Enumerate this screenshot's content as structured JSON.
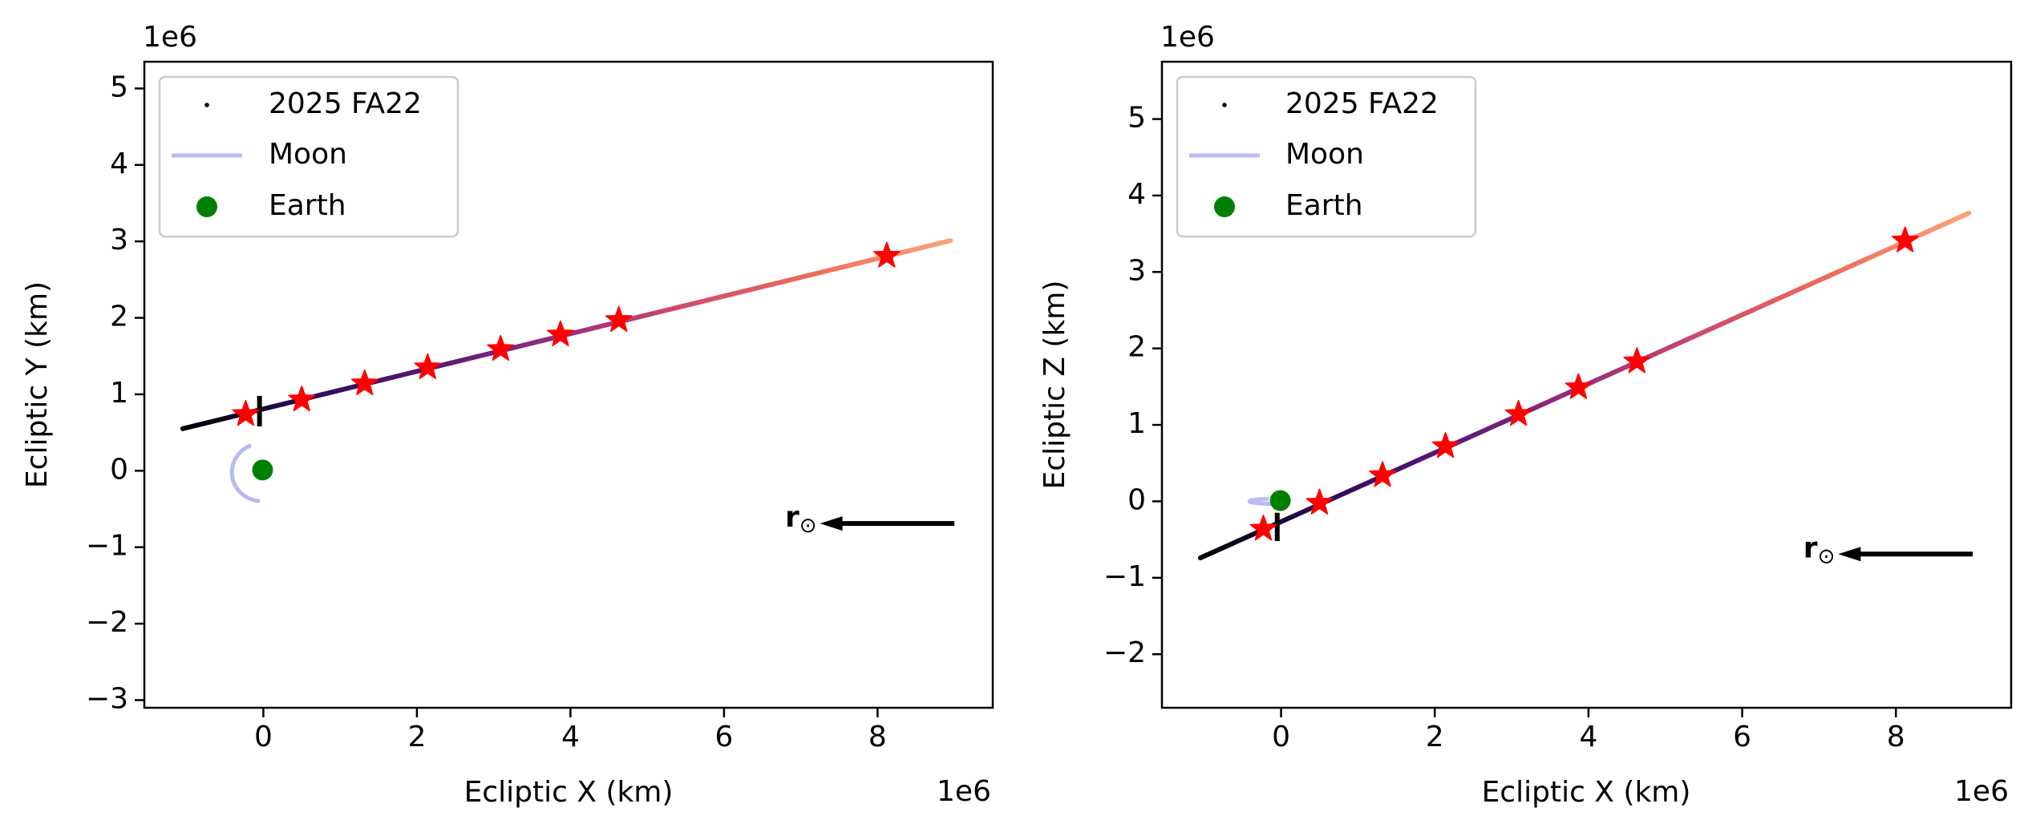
{
  "chart_data": [
    {
      "type": "line",
      "panel": "left",
      "title": "",
      "xlabel": "Ecliptic X (km)",
      "ylabel": "Ecliptic Y (km)",
      "x_multiplier": "1e6",
      "y_multiplier": "1e6",
      "xlim": [
        -1.55,
        9.5
      ],
      "ylim": [
        -3.1,
        5.35
      ],
      "xticks": [
        0,
        2,
        4,
        6,
        8
      ],
      "yticks": [
        -3,
        -2,
        -1,
        0,
        1,
        2,
        3,
        4,
        5
      ],
      "grid": false,
      "legend_position": "upper-left",
      "legend": [
        {
          "label": "2025 FA22",
          "marker": "point",
          "color": "#000000"
        },
        {
          "label": "Moon",
          "marker": "line",
          "color": "#b9b9f4"
        },
        {
          "label": "Earth",
          "marker": "circle",
          "color": "#008000"
        }
      ],
      "trajectory": {
        "name": "2025 FA22",
        "gradient": [
          "#000000",
          "#2c0c5a",
          "#5b1a7a",
          "#9a2f7e",
          "#d24c6a",
          "#f06e5a",
          "#fba47a"
        ],
        "start": [
          -1.05,
          0.55
        ],
        "end": [
          8.95,
          3.01
        ]
      },
      "tick_mark": {
        "x": -0.05,
        "y0": 0.58,
        "y1": 0.98
      },
      "stars": [
        [
          -0.23,
          0.74
        ],
        [
          0.5,
          0.93
        ],
        [
          1.32,
          1.14
        ],
        [
          2.14,
          1.35
        ],
        [
          3.09,
          1.59
        ],
        [
          3.87,
          1.78
        ],
        [
          4.63,
          1.97
        ],
        [
          8.12,
          2.81
        ]
      ],
      "earth": {
        "x": -0.01,
        "y": 0.01
      },
      "moon_arc": {
        "cx": -0.01,
        "cy": -0.02,
        "rx": 0.4,
        "ry": 0.38,
        "theta_start_deg": 112,
        "theta_end_deg": 265
      },
      "sun_direction": {
        "label": "r⊙",
        "from": [
          9.0,
          -0.69
        ],
        "to": [
          7.25,
          -0.69
        ]
      }
    },
    {
      "type": "line",
      "panel": "right",
      "title": "",
      "xlabel": "Ecliptic X (km)",
      "ylabel": "Ecliptic Z (km)",
      "x_multiplier": "1e6",
      "y_multiplier": "1e6",
      "xlim": [
        -1.55,
        9.5
      ],
      "ylim": [
        -2.7,
        5.75
      ],
      "xticks": [
        0,
        2,
        4,
        6,
        8
      ],
      "yticks": [
        -2,
        -1,
        0,
        1,
        2,
        3,
        4,
        5
      ],
      "grid": false,
      "legend_position": "upper-left",
      "legend": [
        {
          "label": "2025 FA22",
          "marker": "point",
          "color": "#000000"
        },
        {
          "label": "Moon",
          "marker": "line",
          "color": "#b9b9f4"
        },
        {
          "label": "Earth",
          "marker": "circle",
          "color": "#008000"
        }
      ],
      "trajectory": {
        "name": "2025 FA22",
        "gradient": [
          "#000000",
          "#2c0c5a",
          "#5b1a7a",
          "#9a2f7e",
          "#d24c6a",
          "#f06e5a",
          "#fba47a"
        ],
        "start": [
          -1.05,
          -0.74
        ],
        "end": [
          8.95,
          3.77
        ]
      },
      "tick_mark": {
        "x": -0.05,
        "y0": -0.52,
        "y1": -0.15
      },
      "stars": [
        [
          -0.23,
          -0.36
        ],
        [
          0.5,
          -0.02
        ],
        [
          1.32,
          0.34
        ],
        [
          2.14,
          0.72
        ],
        [
          3.09,
          1.14
        ],
        [
          3.87,
          1.49
        ],
        [
          4.63,
          1.83
        ],
        [
          8.12,
          3.41
        ]
      ],
      "earth": {
        "x": -0.01,
        "y": 0.01
      },
      "moon_arc": {
        "cx": -0.01,
        "cy": 0.0,
        "rx": 0.4,
        "ry": 0.035,
        "theta_start_deg": 112,
        "theta_end_deg": 265
      },
      "sun_direction": {
        "label": "r⊙",
        "from": [
          9.0,
          -0.69
        ],
        "to": [
          7.25,
          -0.69
        ]
      }
    }
  ]
}
